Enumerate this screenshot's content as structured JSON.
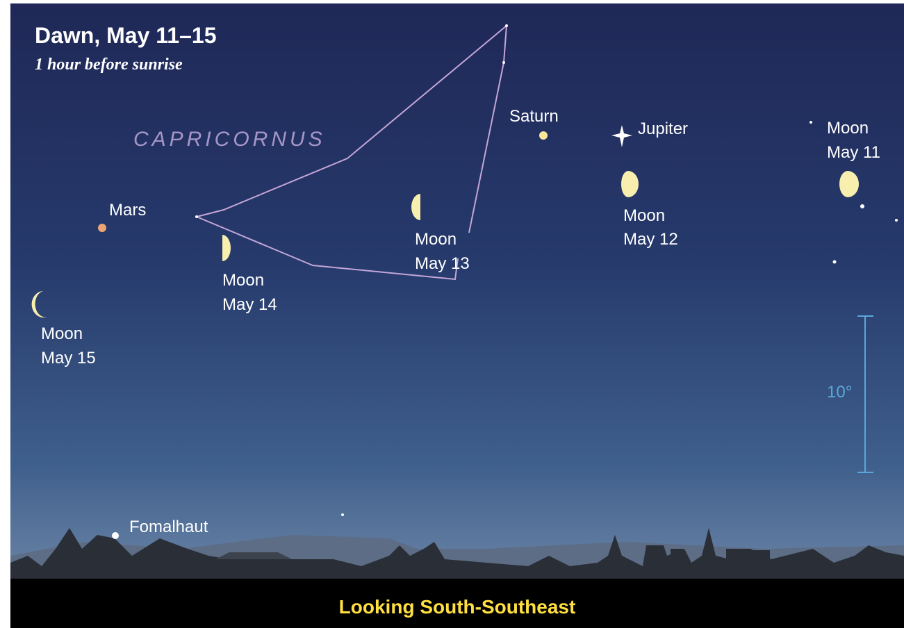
{
  "header": {
    "title": "Dawn, May 11–15",
    "subtitle": "1 hour before sunrise"
  },
  "constellation": {
    "name": "CAPRICORNUS"
  },
  "objects": [
    {
      "label": "Saturn"
    },
    {
      "label": "Jupiter"
    },
    {
      "label": "Mars"
    },
    {
      "label": "Fomalhaut"
    }
  ],
  "moons": [
    {
      "name": "Moon",
      "date": "May 11"
    },
    {
      "name": "Moon",
      "date": "May 12"
    },
    {
      "name": "Moon",
      "date": "May 13"
    },
    {
      "name": "Moon",
      "date": "May 14"
    },
    {
      "name": "Moon",
      "date": "May 15"
    }
  ],
  "scale": {
    "label": "10°"
  },
  "footer": {
    "caption": "Looking South-Southeast"
  }
}
